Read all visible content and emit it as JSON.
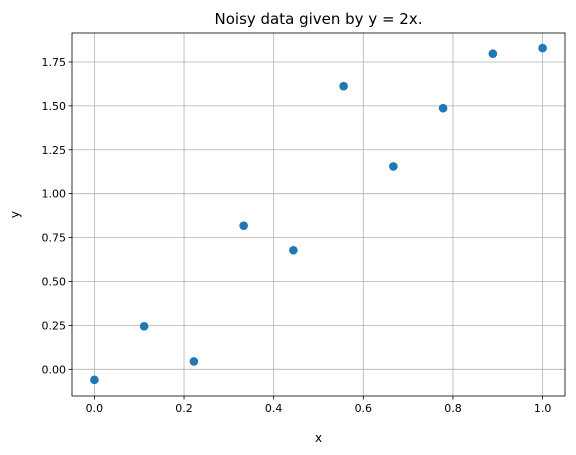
{
  "chart_data": {
    "type": "scatter",
    "title": "Noisy data given by y = 2x.",
    "xlabel": "x",
    "ylabel": "y",
    "xlim": [
      -0.05,
      1.05
    ],
    "ylim": [
      -0.152,
      1.915
    ],
    "grid": true,
    "x_ticks": [
      0.0,
      0.2,
      0.4,
      0.6,
      0.8,
      1.0
    ],
    "x_tick_labels": [
      "0.0",
      "0.2",
      "0.4",
      "0.6",
      "0.8",
      "1.0"
    ],
    "y_ticks": [
      0.0,
      0.25,
      0.5,
      0.75,
      1.0,
      1.25,
      1.5,
      1.75
    ],
    "y_tick_labels": [
      "0.00",
      "0.25",
      "0.50",
      "0.75",
      "1.00",
      "1.25",
      "1.50",
      "1.75"
    ],
    "marker_color": "#1f77b4",
    "x": [
      0.0,
      0.111,
      0.222,
      0.333,
      0.444,
      0.556,
      0.667,
      0.778,
      0.889,
      1.0
    ],
    "y": [
      -0.06,
      0.245,
      0.045,
      0.818,
      0.678,
      1.612,
      1.155,
      1.487,
      1.797,
      1.829
    ]
  }
}
